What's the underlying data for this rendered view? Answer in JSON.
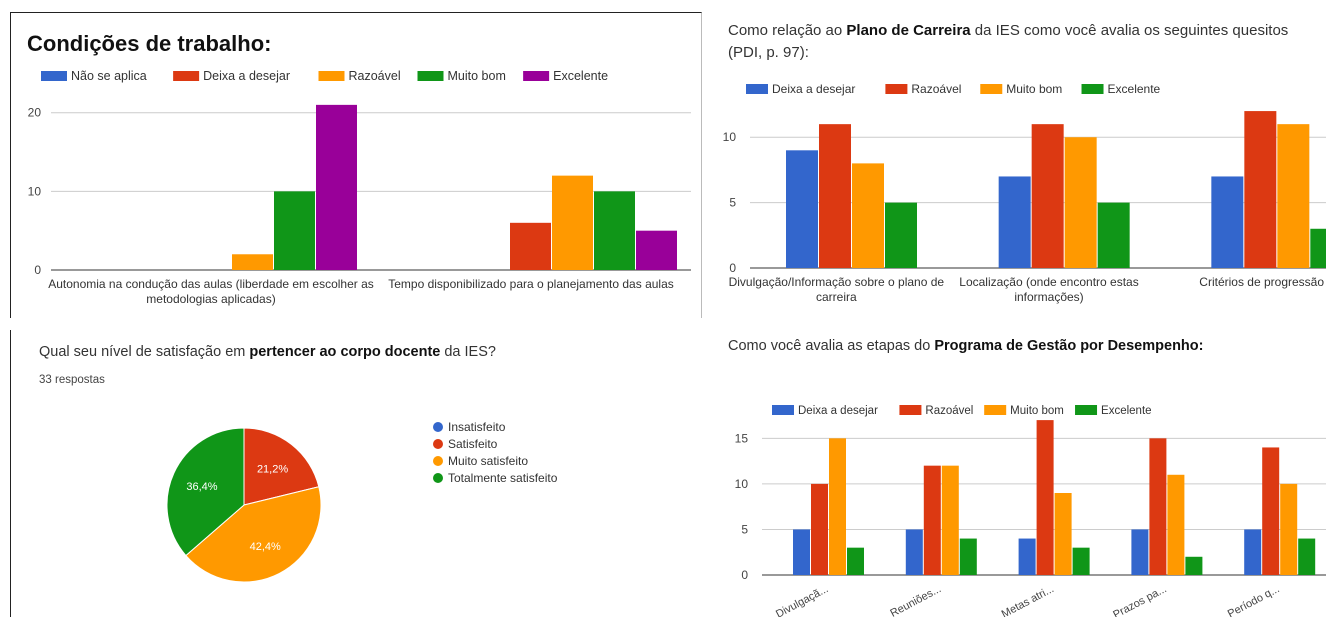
{
  "colors": {
    "blue": "#3366cc",
    "red": "#dc3912",
    "orange": "#ff9900",
    "green": "#109618",
    "purple": "#990099"
  },
  "panels": {
    "p1": {
      "title": "Condições de trabalho:"
    },
    "p2": {
      "title_pre": "Como relação ao ",
      "title_bold": "Plano de Carreira",
      "title_post": " da IES como você avalia os seguintes quesitos (PDI, p. 97):"
    },
    "p3": {
      "title_pre": "Qual seu nível de satisfação em ",
      "title_bold": "pertencer ao corpo docente",
      "title_post": " da IES?",
      "responses": "33 respostas"
    },
    "p4": {
      "title_pre": "Como você avalia as etapas do ",
      "title_bold": "Programa de Gestão por Desempenho:"
    }
  },
  "chart_data": [
    {
      "type": "bar",
      "title": "Condições de trabalho:",
      "categories": [
        [
          "Autonomia na condução das aulas (liberdade em escolher as",
          "metodologias aplicadas)"
        ],
        [
          "Tempo disponibilizado para o planejamento das aulas"
        ]
      ],
      "series": [
        {
          "name": "Não se aplica",
          "color": "#3366cc",
          "values": [
            0,
            0
          ]
        },
        {
          "name": "Deixa a desejar",
          "color": "#dc3912",
          "values": [
            0,
            6
          ]
        },
        {
          "name": "Razoável",
          "color": "#ff9900",
          "values": [
            2,
            12
          ]
        },
        {
          "name": "Muito bom",
          "color": "#109618",
          "values": [
            10,
            10
          ]
        },
        {
          "name": "Excelente",
          "color": "#990099",
          "values": [
            21,
            5
          ]
        }
      ],
      "yticks": [
        0,
        10,
        20
      ],
      "ylim": [
        0,
        22
      ],
      "grid": true,
      "legend": "top"
    },
    {
      "type": "bar",
      "categories": [
        [
          "Divulgação/Informação sobre o plano de",
          "carreira"
        ],
        [
          "Localização (onde encontro estas",
          "informações)"
        ],
        [
          "Critérios de progressão"
        ]
      ],
      "series": [
        {
          "name": "Deixa a desejar",
          "color": "#3366cc",
          "values": [
            9,
            7,
            7
          ]
        },
        {
          "name": "Razoável",
          "color": "#dc3912",
          "values": [
            11,
            11,
            12
          ]
        },
        {
          "name": "Muito bom",
          "color": "#ff9900",
          "values": [
            8,
            10,
            11
          ]
        },
        {
          "name": "Excelente",
          "color": "#109618",
          "values": [
            5,
            5,
            3
          ]
        }
      ],
      "yticks": [
        0,
        5,
        10
      ],
      "ylim": [
        0,
        13
      ],
      "grid": true,
      "legend": "top"
    },
    {
      "type": "pie",
      "slices": [
        {
          "label": "Insatisfeito",
          "value": 0,
          "color": "#3366cc"
        },
        {
          "label": "Satisfeito",
          "value": 21.2,
          "color": "#dc3912",
          "text": "21,2%"
        },
        {
          "label": "Muito satisfeito",
          "value": 42.4,
          "color": "#ff9900",
          "text": "42,4%"
        },
        {
          "label": "Totalmente satisfeito",
          "value": 36.4,
          "color": "#109618",
          "text": "36,4%"
        }
      ],
      "legend": "right"
    },
    {
      "type": "bar",
      "categories": [
        "Divulgaçã...",
        "Reuniões...",
        "Metas atri...",
        "Prazos pa...",
        "Período q..."
      ],
      "series": [
        {
          "name": "Deixa a desejar",
          "color": "#3366cc",
          "values": [
            5,
            5,
            4,
            5,
            5
          ]
        },
        {
          "name": "Razoável",
          "color": "#dc3912",
          "values": [
            10,
            12,
            17,
            15,
            14
          ]
        },
        {
          "name": "Muito bom",
          "color": "#ff9900",
          "values": [
            15,
            12,
            9,
            11,
            10
          ]
        },
        {
          "name": "Excelente",
          "color": "#109618",
          "values": [
            3,
            4,
            3,
            2,
            4
          ]
        }
      ],
      "yticks": [
        0,
        5,
        10,
        15
      ],
      "ylim": [
        0,
        18
      ],
      "grid": true,
      "legend": "top"
    }
  ]
}
